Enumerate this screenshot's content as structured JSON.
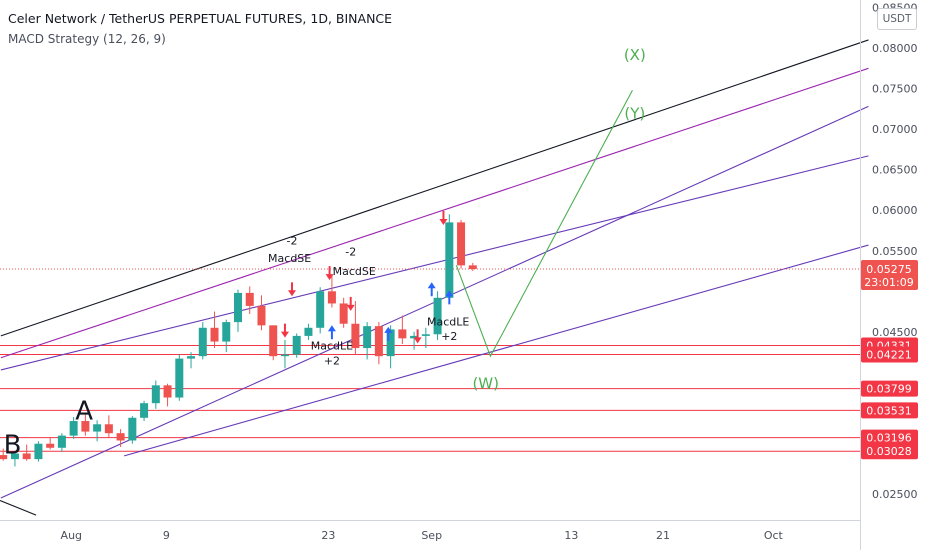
{
  "header": {
    "title": "Celer Network / TetherUS PERPETUAL FUTURES, 1D, BINANCE",
    "indicator": "MACD Strategy (12, 26, 9)",
    "currency": "USDT"
  },
  "colors": {
    "up": "#26a69a",
    "down": "#ef5350",
    "level": "#f23645",
    "channel_black": "#131722",
    "channel_purple": "#9c27b0",
    "channel_violet": "#673ab7",
    "wave_green": "#4caf50",
    "buy_arrow": "#2962ff",
    "sell_arrow": "#f23645"
  },
  "chart_data": {
    "type": "candlestick",
    "title": "Celer Network / TetherUS PERPETUAL FUTURES, 1D, BINANCE",
    "xlabel": "",
    "ylabel": "",
    "ylim": [
      0.0227,
      0.0855
    ],
    "x_axis_labels": [
      "Aug",
      "9",
      "23",
      "Sep",
      "13",
      "21",
      "Oct"
    ],
    "y_axis_labels": [
      "0.08500",
      "0.08000",
      "0.07500",
      "0.07000",
      "0.06500",
      "0.06000",
      "0.05500",
      "0.04500",
      "0.02500"
    ],
    "last_price": "0.05275",
    "countdown": "23:01:09",
    "horizontal_levels": [
      "0.04331",
      "0.04221",
      "0.03799",
      "0.03531",
      "0.03196",
      "0.03028"
    ],
    "candles": [
      {
        "o": 0.0298,
        "h": 0.0306,
        "l": 0.0291,
        "c": 0.0293
      },
      {
        "o": 0.0293,
        "h": 0.0302,
        "l": 0.0284,
        "c": 0.03
      },
      {
        "o": 0.03,
        "h": 0.0311,
        "l": 0.0291,
        "c": 0.0293
      },
      {
        "o": 0.0293,
        "h": 0.0315,
        "l": 0.029,
        "c": 0.0312
      },
      {
        "o": 0.0312,
        "h": 0.032,
        "l": 0.0305,
        "c": 0.0307
      },
      {
        "o": 0.0307,
        "h": 0.0325,
        "l": 0.0302,
        "c": 0.0322
      },
      {
        "o": 0.0322,
        "h": 0.0345,
        "l": 0.0318,
        "c": 0.034
      },
      {
        "o": 0.034,
        "h": 0.0348,
        "l": 0.0322,
        "c": 0.0327
      },
      {
        "o": 0.0327,
        "h": 0.0341,
        "l": 0.0315,
        "c": 0.0336
      },
      {
        "o": 0.0336,
        "h": 0.0347,
        "l": 0.032,
        "c": 0.0325
      },
      {
        "o": 0.0325,
        "h": 0.033,
        "l": 0.0308,
        "c": 0.0316
      },
      {
        "o": 0.0316,
        "h": 0.0346,
        "l": 0.0312,
        "c": 0.0344
      },
      {
        "o": 0.0344,
        "h": 0.0365,
        "l": 0.034,
        "c": 0.0362
      },
      {
        "o": 0.0362,
        "h": 0.039,
        "l": 0.0355,
        "c": 0.0384
      },
      {
        "o": 0.0384,
        "h": 0.0386,
        "l": 0.0358,
        "c": 0.0369
      },
      {
        "o": 0.0369,
        "h": 0.0422,
        "l": 0.0365,
        "c": 0.0417
      },
      {
        "o": 0.0417,
        "h": 0.0425,
        "l": 0.0405,
        "c": 0.042
      },
      {
        "o": 0.042,
        "h": 0.0462,
        "l": 0.0416,
        "c": 0.0455
      },
      {
        "o": 0.0455,
        "h": 0.0475,
        "l": 0.043,
        "c": 0.0438
      },
      {
        "o": 0.0438,
        "h": 0.0465,
        "l": 0.0425,
        "c": 0.0462
      },
      {
        "o": 0.0462,
        "h": 0.0502,
        "l": 0.045,
        "c": 0.0498
      },
      {
        "o": 0.0498,
        "h": 0.0506,
        "l": 0.0472,
        "c": 0.0482
      },
      {
        "o": 0.0482,
        "h": 0.0495,
        "l": 0.0452,
        "c": 0.0458
      },
      {
        "o": 0.0458,
        "h": 0.0458,
        "l": 0.0415,
        "c": 0.042
      },
      {
        "o": 0.042,
        "h": 0.044,
        "l": 0.0405,
        "c": 0.0422
      },
      {
        "o": 0.0422,
        "h": 0.0448,
        "l": 0.0418,
        "c": 0.0445
      },
      {
        "o": 0.0445,
        "h": 0.046,
        "l": 0.044,
        "c": 0.0455
      },
      {
        "o": 0.0455,
        "h": 0.0505,
        "l": 0.0448,
        "c": 0.05
      },
      {
        "o": 0.05,
        "h": 0.052,
        "l": 0.048,
        "c": 0.0485
      },
      {
        "o": 0.0485,
        "h": 0.0492,
        "l": 0.0455,
        "c": 0.046
      },
      {
        "o": 0.046,
        "h": 0.0488,
        "l": 0.0422,
        "c": 0.043
      },
      {
        "o": 0.043,
        "h": 0.0462,
        "l": 0.0416,
        "c": 0.0457
      },
      {
        "o": 0.0457,
        "h": 0.0462,
        "l": 0.041,
        "c": 0.042
      },
      {
        "o": 0.042,
        "h": 0.0458,
        "l": 0.0405,
        "c": 0.0453
      },
      {
        "o": 0.0453,
        "h": 0.047,
        "l": 0.0435,
        "c": 0.0442
      },
      {
        "o": 0.0442,
        "h": 0.045,
        "l": 0.0428,
        "c": 0.0445
      },
      {
        "o": 0.0445,
        "h": 0.0455,
        "l": 0.043,
        "c": 0.0447
      },
      {
        "o": 0.0447,
        "h": 0.05,
        "l": 0.044,
        "c": 0.0492
      },
      {
        "o": 0.0492,
        "h": 0.0595,
        "l": 0.0485,
        "c": 0.0585
      },
      {
        "o": 0.0585,
        "h": 0.0588,
        "l": 0.0528,
        "c": 0.0532
      },
      {
        "o": 0.0532,
        "h": 0.0535,
        "l": 0.0525,
        "c": 0.05275
      }
    ],
    "trendlines": [
      {
        "name": "upper-channel-black",
        "p1": [
          -0.2,
          0.0445
        ],
        "p2": [
          73.7,
          0.081
        ]
      },
      {
        "name": "purple-high",
        "p1": [
          -0.2,
          0.0418
        ],
        "p2": [
          73.7,
          0.0775
        ]
      },
      {
        "name": "violet-steep",
        "p1": [
          -0.2,
          0.0245
        ],
        "p2": [
          73.7,
          0.0728
        ]
      },
      {
        "name": "violet-upper",
        "p1": [
          -0.2,
          0.0403
        ],
        "p2": [
          73.7,
          0.0667
        ]
      },
      {
        "name": "violet-lower",
        "p1": [
          10.3,
          0.0297
        ],
        "p2": [
          73.7,
          0.0557
        ]
      }
    ],
    "wave_path": [
      [
        38.6,
        0.0532
      ],
      [
        41.5,
        0.042
      ],
      [
        53.6,
        0.0748
      ]
    ],
    "annotations": [
      {
        "text": "A",
        "x": 6.9,
        "y": 0.0342
      },
      {
        "text": "B",
        "x": 0.8,
        "y": 0.03
      },
      {
        "text": "-2",
        "x": 24.6,
        "y": 0.0558
      },
      {
        "text": "MacdSE",
        "x": 24.4,
        "y": 0.0536
      },
      {
        "text": "-2",
        "x": 29.6,
        "y": 0.0544
      },
      {
        "text": "MacdSE",
        "x": 29.9,
        "y": 0.052
      },
      {
        "text": "MacdLE",
        "x": 28.0,
        "y": 0.0428
      },
      {
        "text": "+2",
        "x": 28.0,
        "y": 0.041
      },
      {
        "text": "MacdLE",
        "x": 37.9,
        "y": 0.0458
      },
      {
        "text": "+2",
        "x": 38.0,
        "y": 0.044
      },
      {
        "text": "(X)",
        "x": 53.8,
        "y": 0.0785
      },
      {
        "text": "(Y)",
        "x": 53.8,
        "y": 0.0713
      },
      {
        "text": "(W)",
        "x": 41.1,
        "y": 0.038
      }
    ],
    "signals": [
      {
        "type": "sell",
        "x": 24.6,
        "y": 0.05
      },
      {
        "type": "sell",
        "x": 29.6,
        "y": 0.0482
      },
      {
        "type": "sell",
        "x": 24.0,
        "y": 0.0449
      },
      {
        "type": "sell",
        "x": 27.8,
        "y": 0.052
      },
      {
        "type": "sell",
        "x": 35.3,
        "y": 0.0442
      },
      {
        "type": "sell",
        "x": 37.5,
        "y": 0.0588
      },
      {
        "type": "buy",
        "x": 28.0,
        "y": 0.0452
      },
      {
        "type": "buy",
        "x": 38.0,
        "y": 0.0495
      },
      {
        "type": "buy",
        "x": 32.8,
        "y": 0.045
      },
      {
        "type": "buy",
        "x": 36.5,
        "y": 0.0505
      }
    ]
  }
}
